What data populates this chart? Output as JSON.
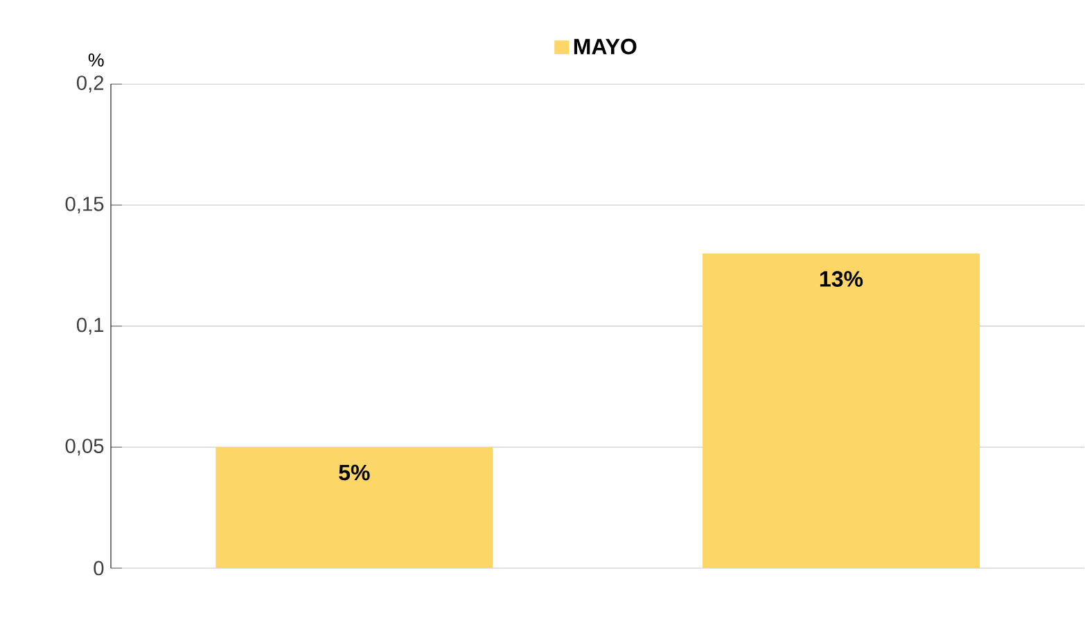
{
  "chart_data": {
    "type": "bar",
    "ylabel": "%",
    "categories": [
      null,
      null
    ],
    "series": [
      {
        "name": "MAYO",
        "color": "#fcd667",
        "values": [
          0.05,
          0.13
        ],
        "value_labels": [
          "5%",
          "13%"
        ]
      }
    ],
    "ylim": [
      0,
      0.2
    ],
    "yticks": [
      0,
      {
        "value": 0.05,
        "label": "0,05"
      },
      {
        "value": 0.1,
        "label": "0,1"
      },
      {
        "value": 0.15,
        "label": "0,15"
      },
      {
        "value": 0.2,
        "label": "0,2"
      }
    ],
    "grid": "y",
    "legend": "top"
  }
}
